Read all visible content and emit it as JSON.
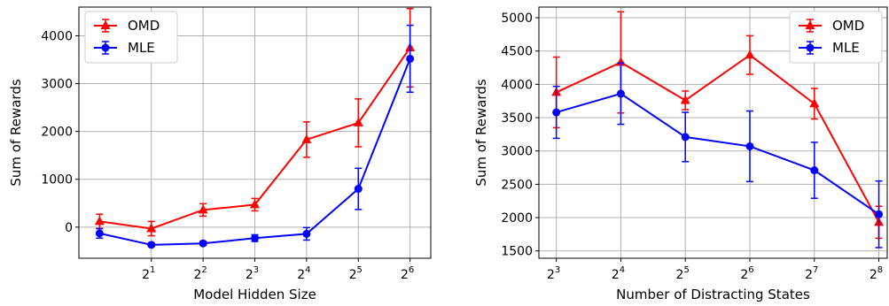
{
  "chart_data": [
    {
      "type": "line",
      "xlabel": "Model Hidden Size",
      "ylabel": "Sum of Rewards",
      "x_ticks": [
        {
          "base": "2",
          "exp": "1",
          "value": 2
        },
        {
          "base": "2",
          "exp": "2",
          "value": 3
        },
        {
          "base": "2",
          "exp": "3",
          "value": 4
        },
        {
          "base": "2",
          "exp": "4",
          "value": 5
        },
        {
          "base": "2",
          "exp": "5",
          "value": 6
        },
        {
          "base": "2",
          "exp": "6",
          "value": 7
        }
      ],
      "xlim": [
        0.6,
        7.4
      ],
      "ylim": [
        -650,
        4600
      ],
      "y_ticks": [
        "0",
        "1000",
        "2000",
        "3000",
        "4000"
      ],
      "y_tick_values": [
        0,
        1000,
        2000,
        3000,
        4000
      ],
      "legend_position": "top-left",
      "grid": true,
      "series": [
        {
          "name": "OMD",
          "color": "#ff0000",
          "marker": "triangle",
          "x": [
            1,
            2,
            3,
            4,
            5,
            6,
            7
          ],
          "y": [
            120,
            -30,
            360,
            470,
            1830,
            2180,
            3750
          ],
          "err": [
            150,
            150,
            130,
            130,
            370,
            500,
            820
          ]
        },
        {
          "name": "MLE",
          "color": "#0000ff",
          "marker": "circle",
          "x": [
            1,
            2,
            3,
            4,
            5,
            6,
            7
          ],
          "y": [
            -130,
            -370,
            -340,
            -230,
            -140,
            800,
            3520
          ],
          "err": [
            100,
            30,
            40,
            70,
            130,
            430,
            700
          ]
        }
      ]
    },
    {
      "type": "line",
      "xlabel": "Number of Distracting States",
      "ylabel": "Sum of Rewards",
      "x_ticks": [
        {
          "base": "2",
          "exp": "3",
          "value": 3
        },
        {
          "base": "2",
          "exp": "4",
          "value": 4
        },
        {
          "base": "2",
          "exp": "5",
          "value": 5
        },
        {
          "base": "2",
          "exp": "6",
          "value": 6
        },
        {
          "base": "2",
          "exp": "7",
          "value": 7
        },
        {
          "base": "2",
          "exp": "8",
          "value": 8
        }
      ],
      "xlim": [
        2.73,
        8.13
      ],
      "ylim": [
        1390,
        5160
      ],
      "y_ticks": [
        "1500",
        "2000",
        "2500",
        "3000",
        "3500",
        "4000",
        "4500",
        "5000"
      ],
      "y_tick_values": [
        1500,
        2000,
        2500,
        3000,
        3500,
        4000,
        4500,
        5000
      ],
      "legend_position": "top-right",
      "grid": true,
      "series": [
        {
          "name": "OMD",
          "color": "#ff0000",
          "marker": "triangle",
          "x": [
            3,
            4,
            5,
            6,
            7,
            8
          ],
          "y": [
            3880,
            4330,
            3760,
            4440,
            3710,
            1930
          ],
          "err": [
            530,
            760,
            140,
            290,
            230,
            240
          ]
        },
        {
          "name": "MLE",
          "color": "#0000ff",
          "marker": "circle",
          "x": [
            3,
            4,
            5,
            6,
            7,
            8
          ],
          "y": [
            3580,
            3860,
            3210,
            3070,
            2710,
            2050
          ],
          "err": [
            390,
            460,
            370,
            530,
            420,
            500
          ]
        }
      ]
    }
  ]
}
